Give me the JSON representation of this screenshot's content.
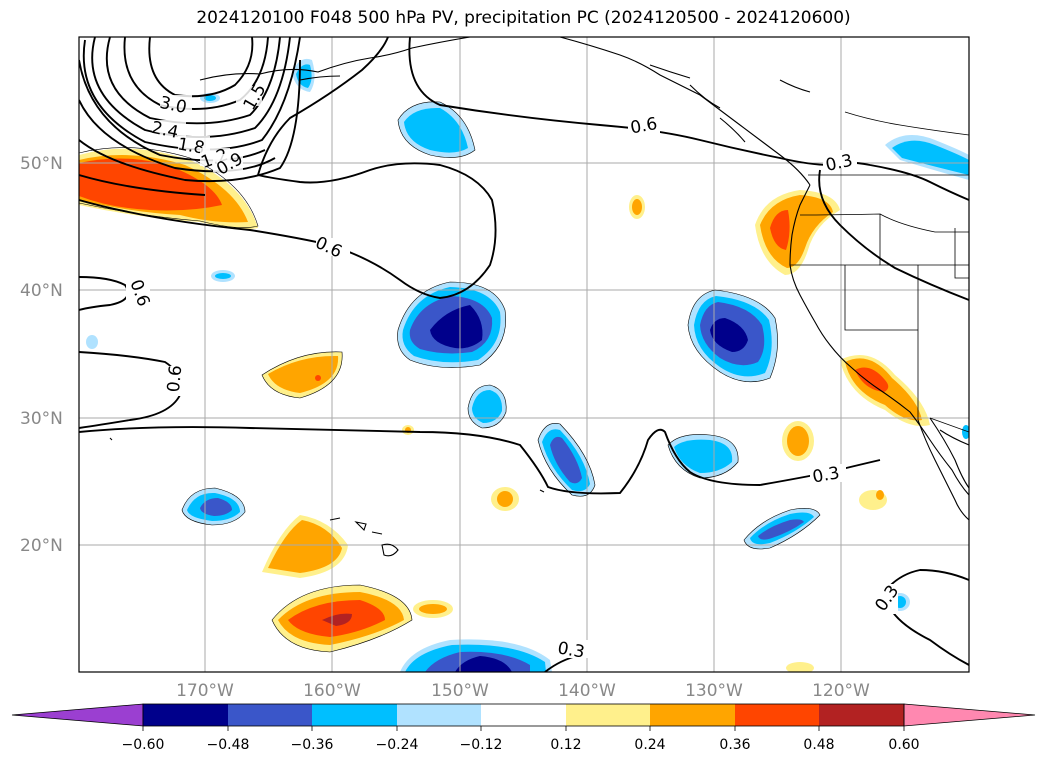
{
  "title": "2024120100 F048 500 hPa PV, precipitation PC (2024120500 - 2024120600)",
  "colors": {
    "neg_levels": [
      "#9b3fd1",
      "#00008b",
      "#3a56c9",
      "#00bfff",
      "#b0e2ff"
    ],
    "pos_levels": [
      "#fff08c",
      "#ffa500",
      "#ff4500",
      "#b22222",
      "#ff88b0"
    ],
    "contour": "#000000",
    "grid": "#aaaaaa",
    "axis_label": "#888888"
  },
  "map": {
    "lon_range": [
      -180,
      -110
    ],
    "lat_range": [
      10,
      60
    ],
    "lat_labels": [
      "50°N",
      "40°N",
      "30°N",
      "20°N"
    ],
    "lon_labels": [
      "170°W",
      "160°W",
      "150°W",
      "140°W",
      "130°W",
      "120°W"
    ]
  },
  "contour_labels": [
    "3.0",
    "2.4",
    "1.8",
    "1.2",
    "0.9",
    "1.5",
    "0.6",
    "0.6",
    "0.6",
    "0.6",
    "0.3",
    "0.3",
    "0.3",
    "0.3"
  ],
  "colorbar": {
    "ticks": [
      "−0.60",
      "−0.48",
      "−0.36",
      "−0.24",
      "−0.12",
      "0.12",
      "0.24",
      "0.36",
      "0.48",
      "0.60"
    ],
    "colors": [
      "#9b3fd1",
      "#00008b",
      "#3a56c9",
      "#00bfff",
      "#b0e2ff",
      "#ffffff",
      "#fff08c",
      "#ffa500",
      "#ff4500",
      "#b22222",
      "#ff88b0"
    ]
  }
}
